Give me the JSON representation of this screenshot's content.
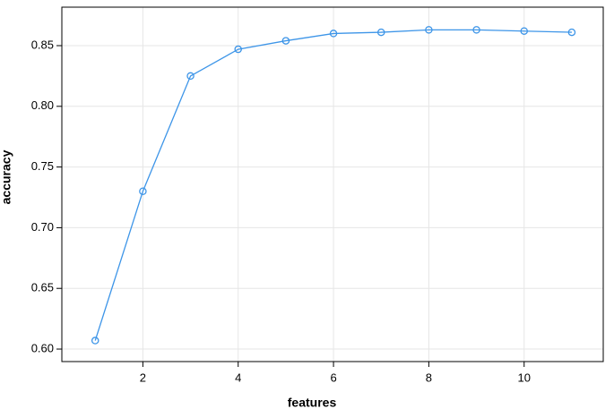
{
  "chart_data": {
    "type": "line",
    "x_label": "features",
    "y_label": "accuracy",
    "x": [
      1,
      2,
      3,
      4,
      5,
      6,
      7,
      8,
      9,
      10,
      11
    ],
    "series": [
      {
        "name": "accuracy",
        "color": "#3d95e8",
        "values": [
          0.607,
          0.73,
          0.825,
          0.847,
          0.854,
          0.86,
          0.861,
          0.863,
          0.863,
          0.862,
          0.861
        ]
      }
    ],
    "xlim": [
      0.3,
      11.66
    ],
    "xticks": [
      2,
      4,
      6,
      8,
      10
    ],
    "ylim": [
      0.5897,
      0.8817
    ],
    "yticks": [
      {
        "value": 0.6,
        "label": "0.60"
      },
      {
        "value": 0.65,
        "label": "0.65"
      },
      {
        "value": 0.7,
        "label": "0.70"
      },
      {
        "value": 0.75,
        "label": "0.75"
      },
      {
        "value": 0.8,
        "label": "0.80"
      },
      {
        "value": 0.85,
        "label": "0.85"
      }
    ],
    "grid": true
  }
}
